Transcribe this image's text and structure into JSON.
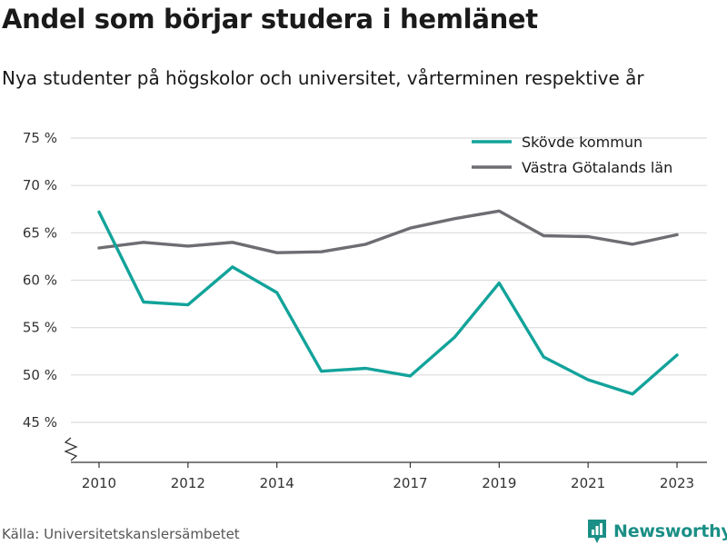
{
  "chart_data": {
    "type": "line",
    "title": "Andel som börjar studera i hemlänet",
    "subtitle": "Nya studenter på högskolor och universitet, vårterminen respektive år",
    "x": [
      2010,
      2011,
      2012,
      2013,
      2014,
      2015,
      2016,
      2017,
      2018,
      2019,
      2020,
      2021,
      2022,
      2023
    ],
    "x_tick_labels": [
      "2010",
      "2012",
      "2014",
      "2017",
      "2019",
      "2021",
      "2023"
    ],
    "x_tick_values": [
      2010,
      2012,
      2014,
      2017,
      2019,
      2021,
      2023
    ],
    "y_ticks": [
      45,
      50,
      55,
      60,
      65,
      70,
      75
    ],
    "y_tick_labels": [
      "45 %",
      "50 %",
      "55 %",
      "60 %",
      "65 %",
      "70 %",
      "75 %"
    ],
    "ylim": [
      42,
      75
    ],
    "y_axis_break": true,
    "grid": true,
    "legend_position": "top-right",
    "series": [
      {
        "name": "Skövde kommun",
        "color": "#12a39a",
        "values": [
          67.2,
          57.7,
          57.4,
          61.4,
          58.7,
          50.4,
          50.7,
          49.9,
          54.0,
          59.7,
          51.9,
          49.5,
          48.0,
          52.1
        ]
      },
      {
        "name": "Västra Götalands län",
        "color": "#6e6d72",
        "values": [
          63.4,
          64.0,
          63.6,
          64.0,
          62.9,
          63.0,
          63.8,
          65.5,
          66.5,
          67.3,
          64.7,
          64.6,
          63.8,
          64.8
        ]
      }
    ]
  },
  "footer": {
    "source": "Källa: Universitetskanslersämbetet",
    "brand": "Newsworthy",
    "brand_icon": "bar-chart-pin-icon",
    "brand_color": "#1a8f86"
  }
}
